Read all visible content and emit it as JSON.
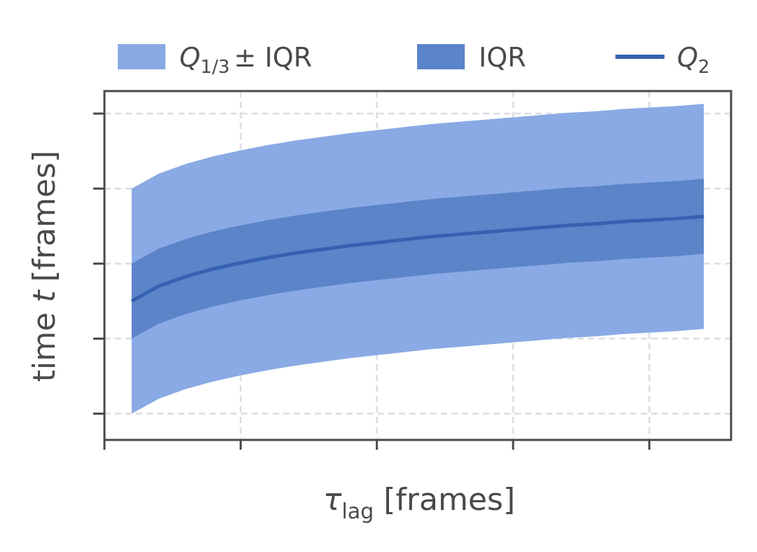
{
  "chart_data": {
    "type": "area",
    "title": "",
    "xlabel": {
      "symbol": "τ",
      "subscript": "lag",
      "unit": "[frames]"
    },
    "ylabel": {
      "prefix": "time ",
      "symbol": "t",
      "unit": "[frames]"
    },
    "xtick_labels": [],
    "ytick_labels": [],
    "grid": true,
    "legend_placement": "top, above plot",
    "legend": [
      {
        "symbol": "Q",
        "subscript": "1/3",
        "suffix": "± IQR",
        "kind": "band-outer"
      },
      {
        "text": "IQR",
        "kind": "band-inner"
      },
      {
        "symbol": "Q",
        "subscript": "2",
        "kind": "line"
      }
    ],
    "x": [
      1,
      2,
      3,
      4,
      5,
      6,
      7,
      8,
      9,
      10,
      11,
      12,
      13,
      14,
      15,
      16,
      17,
      18,
      19,
      20,
      21,
      22
    ],
    "xlim": [
      0,
      23
    ],
    "ylim": [
      -0.35,
      4.3
    ],
    "series": [
      {
        "kind": "outer_band",
        "lower": [
          0.0,
          0.2,
          0.33,
          0.43,
          0.51,
          0.58,
          0.64,
          0.69,
          0.74,
          0.78,
          0.82,
          0.86,
          0.89,
          0.92,
          0.95,
          0.98,
          1.01,
          1.03,
          1.06,
          1.08,
          1.1,
          1.13
        ],
        "upper": [
          3.0,
          3.2,
          3.33,
          3.43,
          3.51,
          3.58,
          3.64,
          3.69,
          3.74,
          3.78,
          3.82,
          3.86,
          3.89,
          3.92,
          3.95,
          3.98,
          4.01,
          4.03,
          4.06,
          4.08,
          4.1,
          4.13
        ]
      },
      {
        "kind": "inner_band",
        "lower": [
          1.0,
          1.2,
          1.33,
          1.43,
          1.51,
          1.58,
          1.64,
          1.69,
          1.74,
          1.78,
          1.82,
          1.86,
          1.89,
          1.92,
          1.95,
          1.98,
          2.01,
          2.03,
          2.06,
          2.08,
          2.1,
          2.13
        ],
        "upper": [
          2.0,
          2.2,
          2.33,
          2.43,
          2.51,
          2.58,
          2.64,
          2.69,
          2.74,
          2.78,
          2.82,
          2.86,
          2.89,
          2.92,
          2.95,
          2.98,
          3.01,
          3.03,
          3.06,
          3.08,
          3.1,
          3.13
        ]
      },
      {
        "kind": "median",
        "values": [
          1.5,
          1.7,
          1.83,
          1.93,
          2.01,
          2.08,
          2.14,
          2.19,
          2.24,
          2.28,
          2.32,
          2.36,
          2.39,
          2.42,
          2.45,
          2.48,
          2.51,
          2.53,
          2.56,
          2.58,
          2.6,
          2.63
        ]
      }
    ],
    "colors": {
      "outer_band": "#89aae4",
      "inner_band": "#5b84c9",
      "median": "#3462b0",
      "grid": "#dcdce4",
      "spine": "#4a4a4a",
      "text": "#4a4a4a"
    }
  }
}
